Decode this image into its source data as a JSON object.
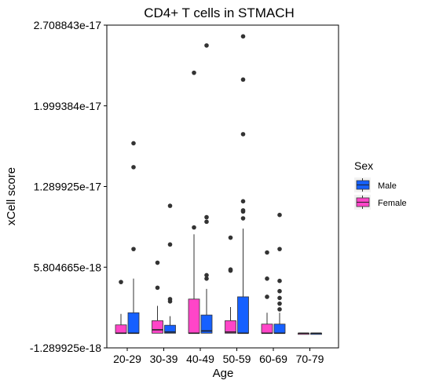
{
  "chart_data": {
    "type": "box",
    "title": "CD4+ T cells in STMACH",
    "xlabel": "Age",
    "ylabel": "xCell score",
    "categories": [
      "20-29",
      "30-39",
      "40-49",
      "50-59",
      "60-69",
      "70-79"
    ],
    "yticks": [
      "2.708843e-17",
      "1.999384e-17",
      "1.289925e-17",
      "5.804665e-18",
      "-1.289925e-18"
    ],
    "ylim": [
      -1.289925e-18,
      2.708843e-17
    ],
    "grid": false,
    "legend": {
      "title": "Sex",
      "position": "right",
      "entries": [
        {
          "name": "Male",
          "color": "#1660FF"
        },
        {
          "name": "Female",
          "color": "#FF45C8"
        }
      ]
    },
    "series": [
      {
        "name": "Female",
        "color": "#FF45C8",
        "boxes": [
          {
            "category": "20-29",
            "min": 0.0,
            "q1": 0.0,
            "median": 0.0,
            "q3": 7.3e-19,
            "max": 1.7e-18,
            "outliers": [
              4.5e-18
            ]
          },
          {
            "category": "30-39",
            "min": 0.0,
            "q1": 0.0,
            "median": 3e-19,
            "q3": 1.1e-18,
            "max": 2.4e-18,
            "outliers": [
              4e-18,
              6.2e-18
            ]
          },
          {
            "category": "40-49",
            "min": 0.0,
            "q1": 0.0,
            "median": 0.0,
            "q3": 3e-18,
            "max": 8.7e-18,
            "outliers": [
              9.3e-18,
              2.29e-17
            ]
          },
          {
            "category": "50-59",
            "min": 0.0,
            "q1": 0.0,
            "median": 1e-19,
            "q3": 1.1e-18,
            "max": 2.3e-18,
            "outliers": [
              5.5e-18,
              5.6e-18,
              8.4e-18
            ]
          },
          {
            "category": "60-69",
            "min": 0.0,
            "q1": 0.0,
            "median": 0.0,
            "q3": 8e-19,
            "max": 1.8e-18,
            "outliers": [
              3.2e-18,
              4.8e-18,
              7.1e-18
            ]
          },
          {
            "category": "70-79",
            "min": 0.0,
            "q1": 0.0,
            "median": 0.0,
            "q3": 0.0,
            "max": 0.0,
            "outliers": []
          }
        ]
      },
      {
        "name": "Male",
        "color": "#1660FF",
        "boxes": [
          {
            "category": "20-29",
            "min": 0.0,
            "q1": 0.0,
            "median": 0.0,
            "q3": 1.8e-18,
            "max": 4.8e-18,
            "outliers": [
              7.4e-18,
              1.46e-17,
              1.67e-17
            ]
          },
          {
            "category": "30-39",
            "min": 0.0,
            "q1": 0.0,
            "median": 1e-19,
            "q3": 7e-19,
            "max": 1.5e-18,
            "outliers": [
              2.8e-18,
              3e-18,
              7.8e-18,
              1.12e-17
            ]
          },
          {
            "category": "40-49",
            "min": 0.0,
            "q1": 0.0,
            "median": 2e-19,
            "q3": 1.6e-18,
            "max": 3.9e-18,
            "outliers": [
              4.8e-18,
              5.1e-18,
              9.8e-18,
              1.02e-17,
              2.53e-17
            ]
          },
          {
            "category": "50-59",
            "min": 0.0,
            "q1": 0.0,
            "median": 0.0,
            "q3": 3.2e-18,
            "max": 9.2e-18,
            "outliers": [
              1.01e-17,
              1.07e-17,
              1.08e-17,
              1.16e-17,
              1.75e-17,
              2.23e-17,
              2.61e-17
            ]
          },
          {
            "category": "60-69",
            "min": 0.0,
            "q1": 0.0,
            "median": 0.0,
            "q3": 8e-19,
            "max": 1.8e-18,
            "outliers": [
              2.1e-18,
              2.6e-18,
              3.1e-18,
              3.7e-18,
              4.6e-18,
              7.4e-18,
              1.04e-17
            ]
          },
          {
            "category": "70-79",
            "min": 0.0,
            "q1": 0.0,
            "median": 0.0,
            "q3": 0.0,
            "max": 0.0,
            "outliers": []
          }
        ]
      }
    ]
  }
}
